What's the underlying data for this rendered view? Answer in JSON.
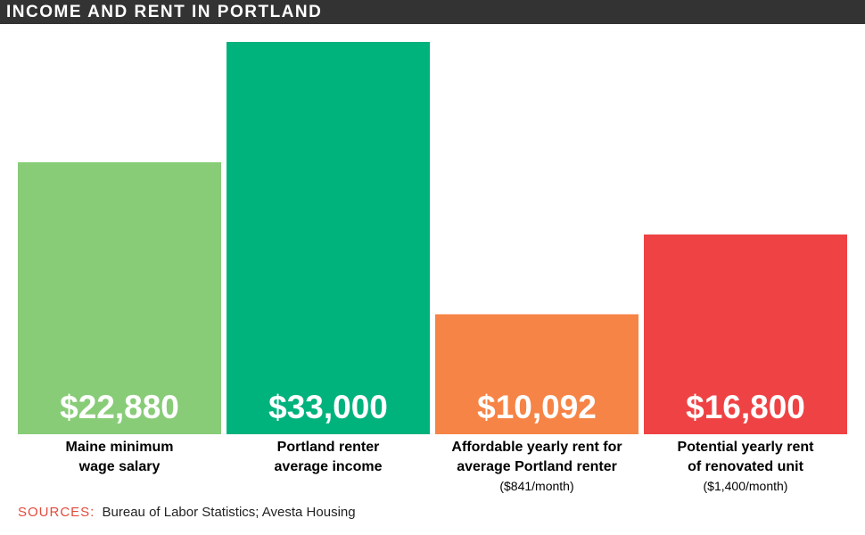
{
  "title": "INCOME AND RENT IN PORTLAND",
  "sources": {
    "label": "SOURCES:",
    "text": "Bureau of Labor Statistics; Avesta Housing"
  },
  "chart_data": {
    "type": "bar",
    "title": "INCOME AND RENT IN PORTLAND",
    "xlabel": "",
    "ylabel": "",
    "ylim": [
      0,
      33000
    ],
    "grid": false,
    "legend": "none",
    "categories": [
      "Maine minimum wage salary",
      "Portland renter average income",
      "Affordable yearly rent for average Portland renter",
      "Potential yearly rent of renovated unit"
    ],
    "category_lines": [
      [
        "Maine minimum",
        "wage salary"
      ],
      [
        "Portland renter",
        "average income"
      ],
      [
        "Affordable yearly rent for",
        "average Portland renter"
      ],
      [
        "Potential yearly rent",
        "of renovated unit"
      ]
    ],
    "notes": [
      "",
      "",
      "($841/month)",
      "($1,400/month)"
    ],
    "values": [
      22880,
      33000,
      10092,
      16800
    ],
    "value_labels": [
      "$22,880",
      "$33,000",
      "$10,092",
      "$16,800"
    ],
    "colors": [
      "#88cc78",
      "#00b27c",
      "#f68446",
      "#ef4244"
    ]
  }
}
